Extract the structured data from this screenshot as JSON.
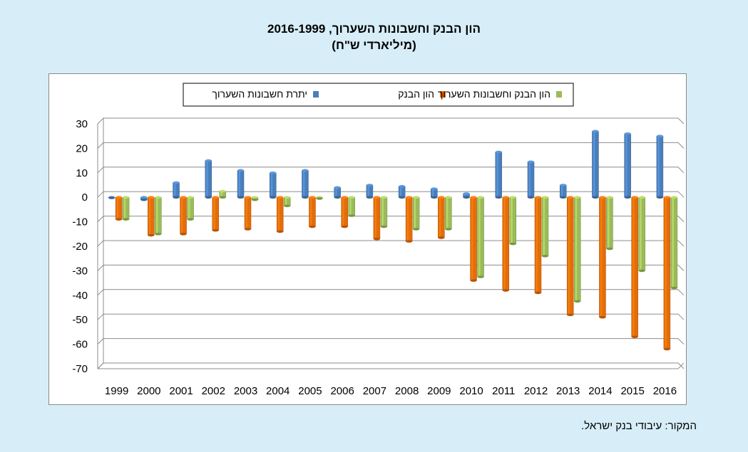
{
  "header": {
    "title_line1": "הון הבנק וחשבונות השערוך,  2016-1999",
    "title_line2": "(מיליארדי ש\"ח)"
  },
  "footer": {
    "source": "המקור:  עיבודי  בנק  ישראל."
  },
  "colors": {
    "blue": "#4a7ebb",
    "orange": "#e46c0a",
    "green": "#9bbb59",
    "background": "#d7eef8"
  },
  "chart_data": {
    "type": "bar",
    "title": "הון הבנק וחשבונות השערוך,  2016-1999 (מיליארדי ש\"ח)",
    "ylim": [
      -70,
      30
    ],
    "yticks": [
      30,
      20,
      10,
      0,
      -10,
      -20,
      -30,
      -40,
      -50,
      -60,
      -70
    ],
    "grid": true,
    "legend_position": "top",
    "categories": [
      "1999",
      "2000",
      "2001",
      "2002",
      "2003",
      "2004",
      "2005",
      "2006",
      "2007",
      "2008",
      "2009",
      "2010",
      "2011",
      "2012",
      "2013",
      "2014",
      "2015",
      "2016"
    ],
    "series": [
      {
        "name": "יתרת חשבונות  השערוך",
        "color": "#4a7ebb",
        "values": [
          0,
          -1,
          6,
          15,
          11,
          10,
          11,
          4,
          5,
          4.5,
          3.5,
          1.5,
          18.5,
          14.5,
          5,
          27,
          26,
          25
        ]
      },
      {
        "name": "הון הבנק",
        "color": "#e46c0a",
        "values": [
          -9,
          -15.5,
          -15,
          -13.5,
          -13,
          -14,
          -12,
          -12,
          -17,
          -18,
          -16.5,
          -34,
          -38,
          -39,
          -48,
          -49,
          -57,
          -62
        ]
      },
      {
        "name": "הון הבנק וחשבונות  השערוך",
        "color": "#9bbb59",
        "values": [
          -9,
          -15,
          -9,
          2.5,
          -1,
          -3.5,
          -0.5,
          -7.5,
          -12,
          -13,
          -13,
          -32.5,
          -19,
          -24,
          -42.5,
          -21,
          -30,
          -37
        ]
      }
    ]
  }
}
